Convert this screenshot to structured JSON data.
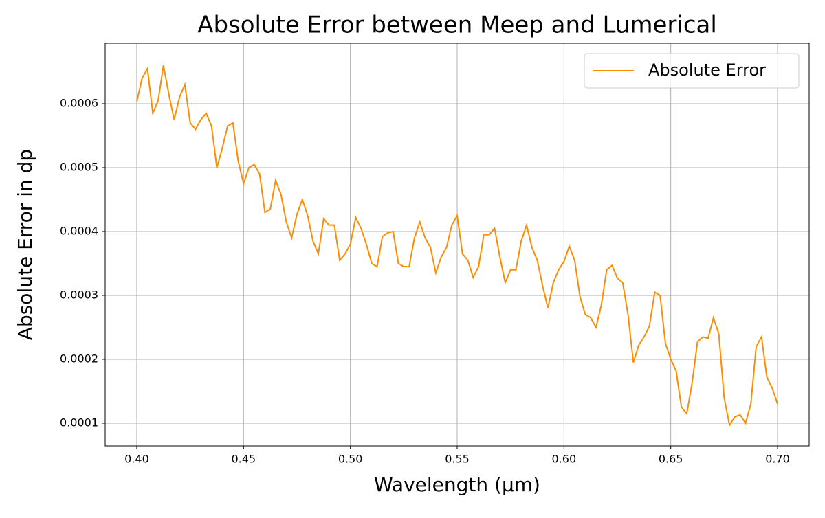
{
  "chart_data": {
    "type": "line",
    "title": "Absolute Error between Meep and Lumerical",
    "xlabel": "Wavelength (µm)",
    "ylabel": "Absolute Error in dp",
    "x": [
      0.4,
      0.4025,
      0.405,
      0.4075,
      0.41,
      0.4125,
      0.415,
      0.4175,
      0.42,
      0.4225,
      0.425,
      0.4275,
      0.43,
      0.4325,
      0.435,
      0.4375,
      0.44,
      0.4425,
      0.445,
      0.4475,
      0.45,
      0.4525,
      0.455,
      0.4575,
      0.46,
      0.4625,
      0.465,
      0.4675,
      0.47,
      0.4725,
      0.475,
      0.4775,
      0.48,
      0.4825,
      0.485,
      0.4875,
      0.49,
      0.4925,
      0.495,
      0.4975,
      0.5,
      0.5025,
      0.505,
      0.5075,
      0.51,
      0.5125,
      0.515,
      0.5175,
      0.52,
      0.5225,
      0.525,
      0.5275,
      0.53,
      0.5325,
      0.535,
      0.5375,
      0.54,
      0.5425,
      0.545,
      0.5475,
      0.55,
      0.5525,
      0.555,
      0.5575,
      0.56,
      0.5625,
      0.565,
      0.5675,
      0.57,
      0.5725,
      0.575,
      0.5775,
      0.58,
      0.5825,
      0.585,
      0.5875,
      0.59,
      0.5925,
      0.595,
      0.5975,
      0.6,
      0.6025,
      0.605,
      0.6075,
      0.61,
      0.6125,
      0.615,
      0.6175,
      0.62,
      0.6225,
      0.625,
      0.6275,
      0.63,
      0.6325,
      0.635,
      0.6375,
      0.64,
      0.6425,
      0.645,
      0.6475,
      0.65,
      0.6525,
      0.655,
      0.6575,
      0.66,
      0.6625,
      0.665,
      0.6675,
      0.67,
      0.6725,
      0.675,
      0.6775,
      0.68,
      0.6825,
      0.685,
      0.6875,
      0.69,
      0.6925,
      0.695,
      0.6975,
      0.7
    ],
    "series": [
      {
        "name": "Absolute Error",
        "color": "#ff8c00",
        "values": [
          0.000603,
          0.00064,
          0.000655,
          0.000585,
          0.000605,
          0.00066,
          0.000615,
          0.000575,
          0.00061,
          0.00063,
          0.00057,
          0.00056,
          0.000575,
          0.000585,
          0.000565,
          0.0005,
          0.00053,
          0.000565,
          0.00057,
          0.00051,
          0.000475,
          0.0005,
          0.000505,
          0.00049,
          0.00043,
          0.000435,
          0.00048,
          0.000458,
          0.000415,
          0.00039,
          0.000427,
          0.00045,
          0.000425,
          0.000385,
          0.000365,
          0.00042,
          0.00041,
          0.00041,
          0.000355,
          0.000365,
          0.00038,
          0.000422,
          0.000405,
          0.00038,
          0.00035,
          0.000345,
          0.000392,
          0.000398,
          0.0004,
          0.00035,
          0.000345,
          0.000345,
          0.00039,
          0.000415,
          0.00039,
          0.000375,
          0.000335,
          0.00036,
          0.000375,
          0.00041,
          0.000425,
          0.000365,
          0.000355,
          0.000328,
          0.000345,
          0.000395,
          0.000395,
          0.000405,
          0.00036,
          0.00032,
          0.00034,
          0.00034,
          0.000385,
          0.00041,
          0.000375,
          0.000355,
          0.000315,
          0.00028,
          0.00032,
          0.00034,
          0.000353,
          0.000377,
          0.000355,
          0.000298,
          0.00027,
          0.000265,
          0.00025,
          0.000285,
          0.00034,
          0.000347,
          0.000327,
          0.00032,
          0.00027,
          0.000195,
          0.000222,
          0.000235,
          0.000252,
          0.000305,
          0.0003,
          0.000225,
          0.0002,
          0.000182,
          0.000125,
          0.000115,
          0.000163,
          0.000227,
          0.000235,
          0.000233,
          0.000265,
          0.00024,
          0.00014,
          9.7e-05,
          0.00011,
          0.000113,
          0.0001,
          0.00013,
          0.00022,
          0.000235,
          0.000172,
          0.000155,
          0.00013
        ]
      }
    ],
    "xlim": [
      0.3852,
      0.7148
    ],
    "ylim": [
      6.45e-05,
      0.0006946
    ],
    "xticks": [
      {
        "value": 0.4,
        "label": "0.40"
      },
      0.45,
      {
        "value": 0.5,
        "label": "0.50"
      },
      0.55,
      {
        "value": 0.6,
        "label": "0.60"
      },
      0.65,
      {
        "value": 0.7,
        "label": "0.70"
      }
    ],
    "yticks": [
      0.0001,
      0.0002,
      0.0003,
      0.0004,
      0.0005,
      0.0006
    ],
    "grid": true,
    "legend": "upper right"
  }
}
